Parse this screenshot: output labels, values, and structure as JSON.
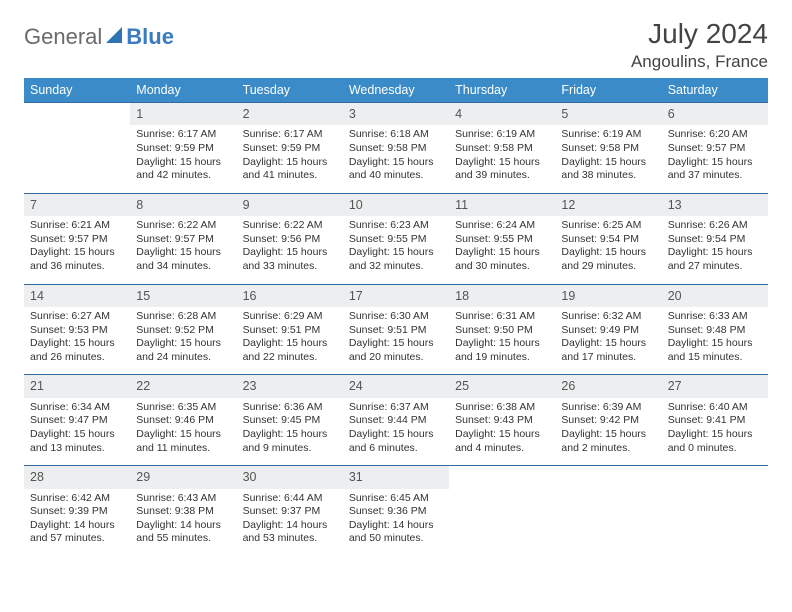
{
  "brand": {
    "text1": "General",
    "text2": "Blue"
  },
  "title": {
    "month": "July 2024",
    "location": "Angoulins, France"
  },
  "colors": {
    "header_bg": "#3b8bc9",
    "header_fg": "#ffffff",
    "rule": "#2f6aa0",
    "daynum_bg": "#eceeef",
    "brand_gray": "#6a6a6a",
    "brand_blue": "#3b7bbf"
  },
  "typography": {
    "month_fontsize": 28,
    "location_fontsize": 17,
    "header_fontsize": 12.5,
    "body_fontsize": 10.5
  },
  "day_header": [
    "Sunday",
    "Monday",
    "Tuesday",
    "Wednesday",
    "Thursday",
    "Friday",
    "Saturday"
  ],
  "weeks": [
    [
      {
        "n": "",
        "sunrise": "",
        "sunset": "",
        "day1": "",
        "day2": ""
      },
      {
        "n": "1",
        "sunrise": "Sunrise: 6:17 AM",
        "sunset": "Sunset: 9:59 PM",
        "day1": "Daylight: 15 hours",
        "day2": "and 42 minutes."
      },
      {
        "n": "2",
        "sunrise": "Sunrise: 6:17 AM",
        "sunset": "Sunset: 9:59 PM",
        "day1": "Daylight: 15 hours",
        "day2": "and 41 minutes."
      },
      {
        "n": "3",
        "sunrise": "Sunrise: 6:18 AM",
        "sunset": "Sunset: 9:58 PM",
        "day1": "Daylight: 15 hours",
        "day2": "and 40 minutes."
      },
      {
        "n": "4",
        "sunrise": "Sunrise: 6:19 AM",
        "sunset": "Sunset: 9:58 PM",
        "day1": "Daylight: 15 hours",
        "day2": "and 39 minutes."
      },
      {
        "n": "5",
        "sunrise": "Sunrise: 6:19 AM",
        "sunset": "Sunset: 9:58 PM",
        "day1": "Daylight: 15 hours",
        "day2": "and 38 minutes."
      },
      {
        "n": "6",
        "sunrise": "Sunrise: 6:20 AM",
        "sunset": "Sunset: 9:57 PM",
        "day1": "Daylight: 15 hours",
        "day2": "and 37 minutes."
      }
    ],
    [
      {
        "n": "7",
        "sunrise": "Sunrise: 6:21 AM",
        "sunset": "Sunset: 9:57 PM",
        "day1": "Daylight: 15 hours",
        "day2": "and 36 minutes."
      },
      {
        "n": "8",
        "sunrise": "Sunrise: 6:22 AM",
        "sunset": "Sunset: 9:57 PM",
        "day1": "Daylight: 15 hours",
        "day2": "and 34 minutes."
      },
      {
        "n": "9",
        "sunrise": "Sunrise: 6:22 AM",
        "sunset": "Sunset: 9:56 PM",
        "day1": "Daylight: 15 hours",
        "day2": "and 33 minutes."
      },
      {
        "n": "10",
        "sunrise": "Sunrise: 6:23 AM",
        "sunset": "Sunset: 9:55 PM",
        "day1": "Daylight: 15 hours",
        "day2": "and 32 minutes."
      },
      {
        "n": "11",
        "sunrise": "Sunrise: 6:24 AM",
        "sunset": "Sunset: 9:55 PM",
        "day1": "Daylight: 15 hours",
        "day2": "and 30 minutes."
      },
      {
        "n": "12",
        "sunrise": "Sunrise: 6:25 AM",
        "sunset": "Sunset: 9:54 PM",
        "day1": "Daylight: 15 hours",
        "day2": "and 29 minutes."
      },
      {
        "n": "13",
        "sunrise": "Sunrise: 6:26 AM",
        "sunset": "Sunset: 9:54 PM",
        "day1": "Daylight: 15 hours",
        "day2": "and 27 minutes."
      }
    ],
    [
      {
        "n": "14",
        "sunrise": "Sunrise: 6:27 AM",
        "sunset": "Sunset: 9:53 PM",
        "day1": "Daylight: 15 hours",
        "day2": "and 26 minutes."
      },
      {
        "n": "15",
        "sunrise": "Sunrise: 6:28 AM",
        "sunset": "Sunset: 9:52 PM",
        "day1": "Daylight: 15 hours",
        "day2": "and 24 minutes."
      },
      {
        "n": "16",
        "sunrise": "Sunrise: 6:29 AM",
        "sunset": "Sunset: 9:51 PM",
        "day1": "Daylight: 15 hours",
        "day2": "and 22 minutes."
      },
      {
        "n": "17",
        "sunrise": "Sunrise: 6:30 AM",
        "sunset": "Sunset: 9:51 PM",
        "day1": "Daylight: 15 hours",
        "day2": "and 20 minutes."
      },
      {
        "n": "18",
        "sunrise": "Sunrise: 6:31 AM",
        "sunset": "Sunset: 9:50 PM",
        "day1": "Daylight: 15 hours",
        "day2": "and 19 minutes."
      },
      {
        "n": "19",
        "sunrise": "Sunrise: 6:32 AM",
        "sunset": "Sunset: 9:49 PM",
        "day1": "Daylight: 15 hours",
        "day2": "and 17 minutes."
      },
      {
        "n": "20",
        "sunrise": "Sunrise: 6:33 AM",
        "sunset": "Sunset: 9:48 PM",
        "day1": "Daylight: 15 hours",
        "day2": "and 15 minutes."
      }
    ],
    [
      {
        "n": "21",
        "sunrise": "Sunrise: 6:34 AM",
        "sunset": "Sunset: 9:47 PM",
        "day1": "Daylight: 15 hours",
        "day2": "and 13 minutes."
      },
      {
        "n": "22",
        "sunrise": "Sunrise: 6:35 AM",
        "sunset": "Sunset: 9:46 PM",
        "day1": "Daylight: 15 hours",
        "day2": "and 11 minutes."
      },
      {
        "n": "23",
        "sunrise": "Sunrise: 6:36 AM",
        "sunset": "Sunset: 9:45 PM",
        "day1": "Daylight: 15 hours",
        "day2": "and 9 minutes."
      },
      {
        "n": "24",
        "sunrise": "Sunrise: 6:37 AM",
        "sunset": "Sunset: 9:44 PM",
        "day1": "Daylight: 15 hours",
        "day2": "and 6 minutes."
      },
      {
        "n": "25",
        "sunrise": "Sunrise: 6:38 AM",
        "sunset": "Sunset: 9:43 PM",
        "day1": "Daylight: 15 hours",
        "day2": "and 4 minutes."
      },
      {
        "n": "26",
        "sunrise": "Sunrise: 6:39 AM",
        "sunset": "Sunset: 9:42 PM",
        "day1": "Daylight: 15 hours",
        "day2": "and 2 minutes."
      },
      {
        "n": "27",
        "sunrise": "Sunrise: 6:40 AM",
        "sunset": "Sunset: 9:41 PM",
        "day1": "Daylight: 15 hours",
        "day2": "and 0 minutes."
      }
    ],
    [
      {
        "n": "28",
        "sunrise": "Sunrise: 6:42 AM",
        "sunset": "Sunset: 9:39 PM",
        "day1": "Daylight: 14 hours",
        "day2": "and 57 minutes."
      },
      {
        "n": "29",
        "sunrise": "Sunrise: 6:43 AM",
        "sunset": "Sunset: 9:38 PM",
        "day1": "Daylight: 14 hours",
        "day2": "and 55 minutes."
      },
      {
        "n": "30",
        "sunrise": "Sunrise: 6:44 AM",
        "sunset": "Sunset: 9:37 PM",
        "day1": "Daylight: 14 hours",
        "day2": "and 53 minutes."
      },
      {
        "n": "31",
        "sunrise": "Sunrise: 6:45 AM",
        "sunset": "Sunset: 9:36 PM",
        "day1": "Daylight: 14 hours",
        "day2": "and 50 minutes."
      },
      {
        "n": "",
        "sunrise": "",
        "sunset": "",
        "day1": "",
        "day2": ""
      },
      {
        "n": "",
        "sunrise": "",
        "sunset": "",
        "day1": "",
        "day2": ""
      },
      {
        "n": "",
        "sunrise": "",
        "sunset": "",
        "day1": "",
        "day2": ""
      }
    ]
  ]
}
